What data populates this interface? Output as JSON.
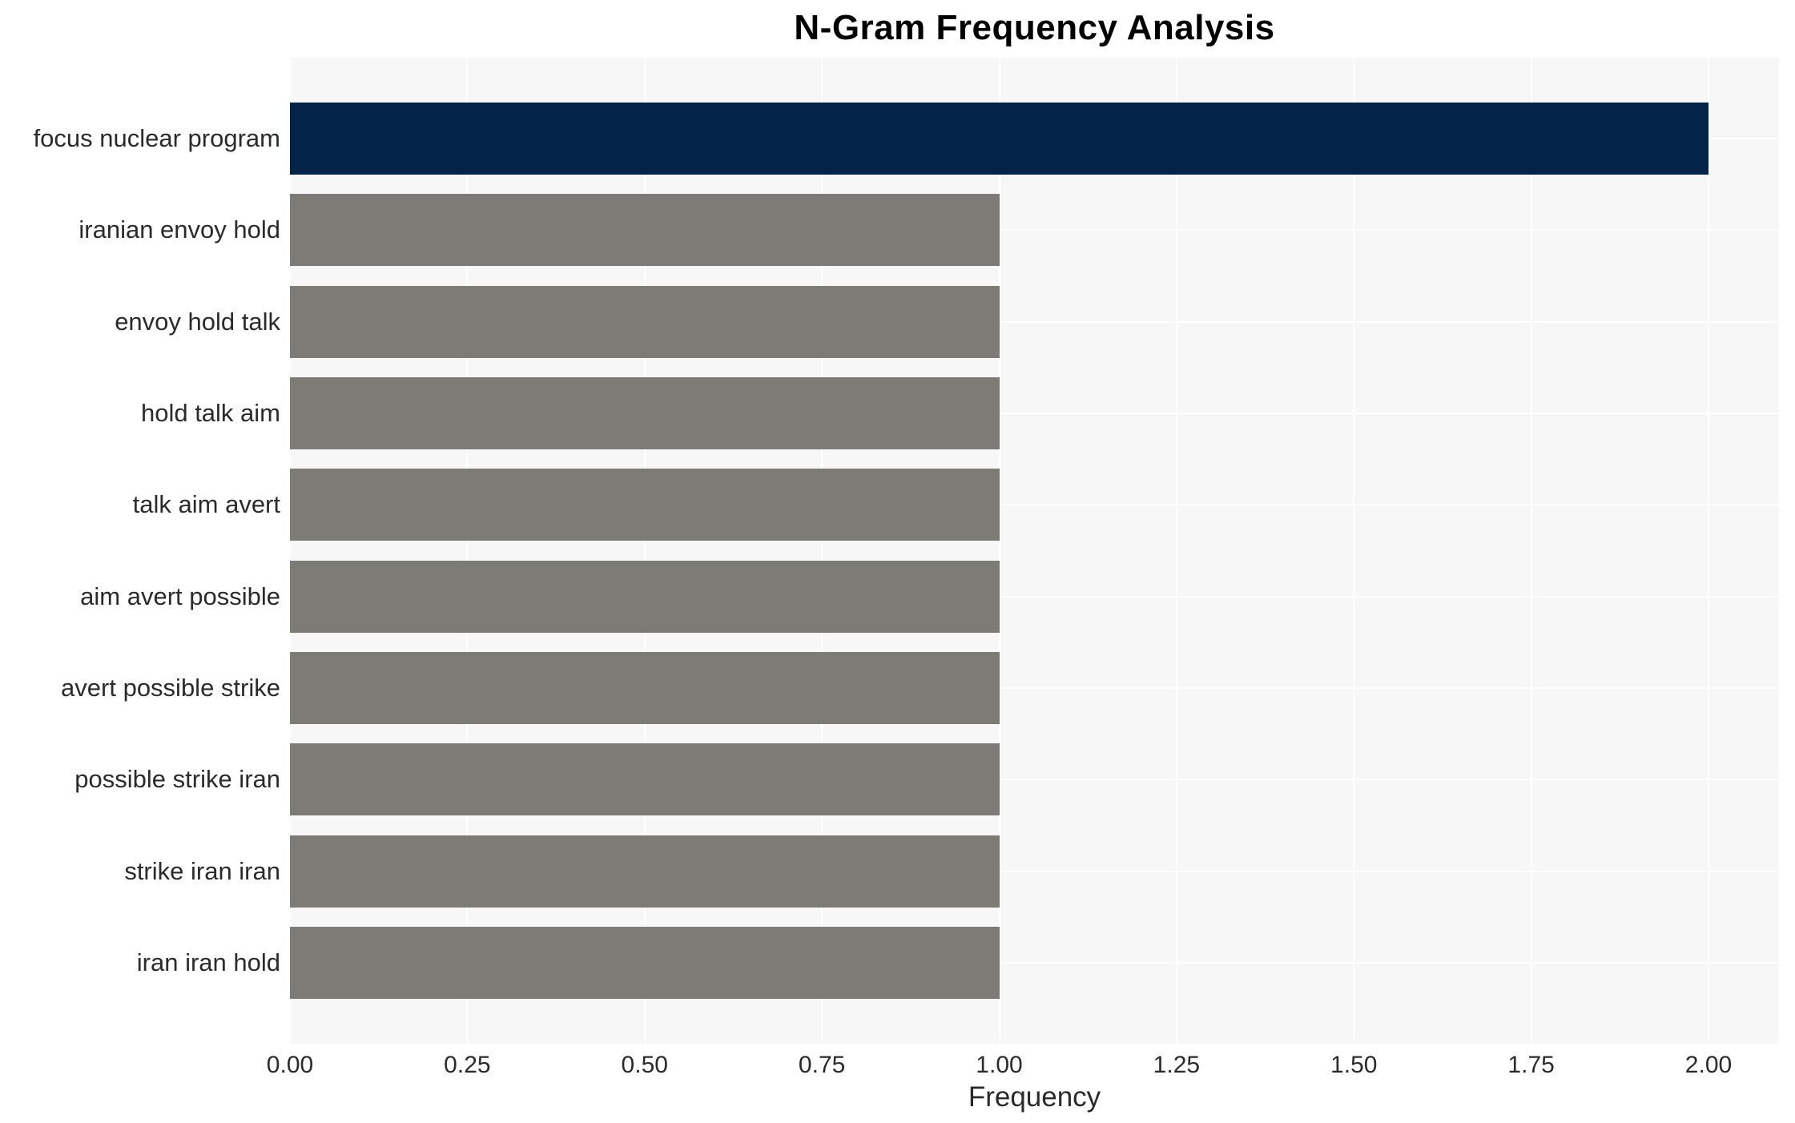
{
  "chart_data": {
    "type": "bar",
    "orientation": "horizontal",
    "title": "N-Gram Frequency Analysis",
    "xlabel": "Frequency",
    "ylabel": "",
    "categories": [
      "focus nuclear program",
      "iranian envoy hold",
      "envoy hold talk",
      "hold talk aim",
      "talk aim avert",
      "aim avert possible",
      "avert possible strike",
      "possible strike iran",
      "strike iran iran",
      "iran iran hold"
    ],
    "values": [
      2.0,
      1.0,
      1.0,
      1.0,
      1.0,
      1.0,
      1.0,
      1.0,
      1.0,
      1.0
    ],
    "highlight_index": 0,
    "x_ticks": [
      "0.00",
      "0.25",
      "0.50",
      "0.75",
      "1.00",
      "1.25",
      "1.50",
      "1.75",
      "2.00"
    ],
    "x_tick_values": [
      0.0,
      0.25,
      0.5,
      0.75,
      1.0,
      1.25,
      1.5,
      1.75,
      2.0
    ],
    "xlim": [
      0,
      2.1
    ],
    "grid": true,
    "legend": "none",
    "colors": {
      "bar_highlight": "#032349",
      "bar_default": "#7d7b75",
      "plot_background": "#f7f7f7",
      "gridline": "#ffffff",
      "text": "#2b2b2b",
      "title_text": "#000000"
    }
  }
}
